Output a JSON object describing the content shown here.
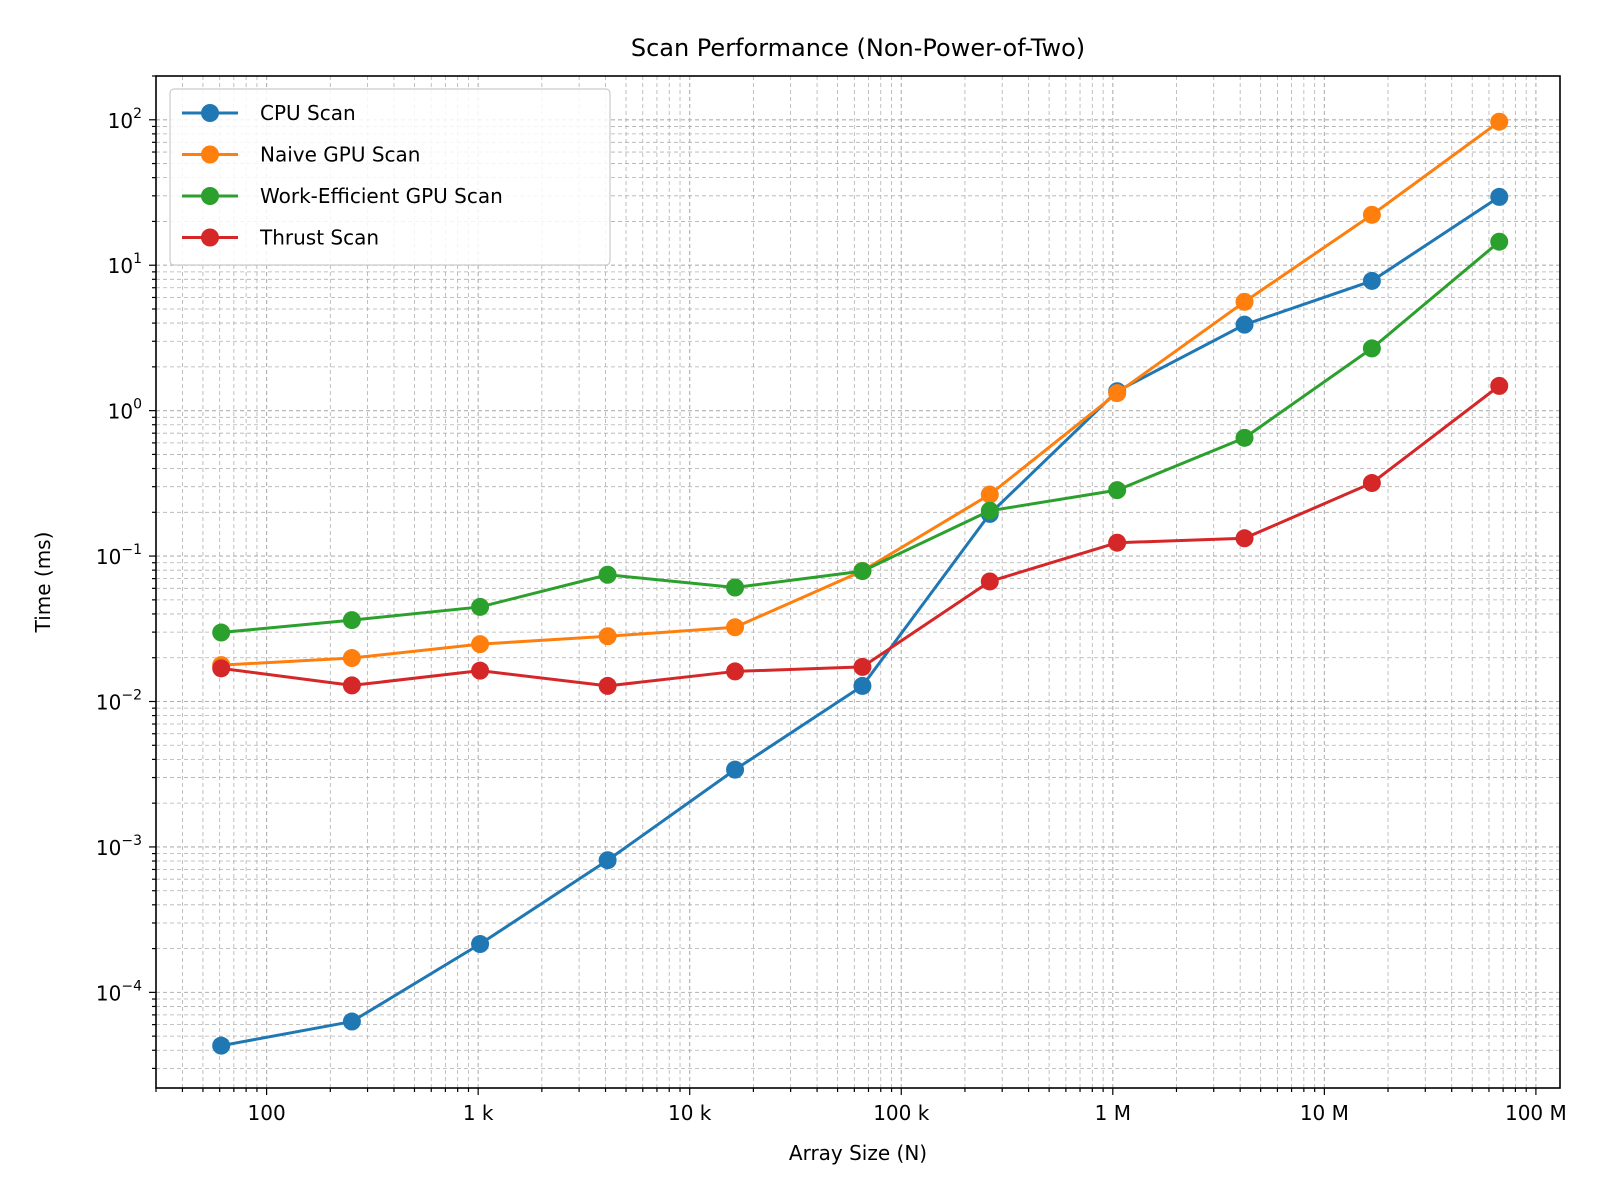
{
  "chart_data": {
    "type": "line",
    "title": "Scan Performance (Non-Power-of-Two)",
    "xlabel": "Array Size (N)",
    "ylabel": "Time (ms)",
    "xscale": "log",
    "yscale": "log",
    "xlim": [
      30,
      130000000
    ],
    "ylim": [
      2.2e-05,
      200
    ],
    "grid": true,
    "legend_position": "upper-left",
    "x": [
      61,
      253,
      1021,
      4093,
      16381,
      65533,
      262141,
      1048573,
      4194301,
      16777213,
      67108861
    ],
    "x_ticks": [
      {
        "value": 100,
        "label": "100"
      },
      {
        "value": 1000,
        "label": "1 k"
      },
      {
        "value": 10000,
        "label": "10 k"
      },
      {
        "value": 100000,
        "label": "100 k"
      },
      {
        "value": 1000000,
        "label": "1 M"
      },
      {
        "value": 10000000,
        "label": "10 M"
      },
      {
        "value": 100000000,
        "label": "100 M"
      }
    ],
    "y_ticks": [
      {
        "value": 0.0001,
        "base": "10",
        "exp": "−4"
      },
      {
        "value": 0.001,
        "base": "10",
        "exp": "−3"
      },
      {
        "value": 0.01,
        "base": "10",
        "exp": "−2"
      },
      {
        "value": 0.1,
        "base": "10",
        "exp": "−1"
      },
      {
        "value": 1,
        "base": "10",
        "exp": "0"
      },
      {
        "value": 10,
        "base": "10",
        "exp": "1"
      },
      {
        "value": 100,
        "base": "10",
        "exp": "2"
      }
    ],
    "series": [
      {
        "name": "CPU Scan",
        "color": "#1f77b4",
        "values": [
          4.3e-05,
          6.3e-05,
          0.000215,
          0.00081,
          0.0034,
          0.0128,
          0.195,
          1.36,
          3.9,
          7.8,
          29.5
        ]
      },
      {
        "name": "Naive GPU Scan",
        "color": "#ff7f0e",
        "values": [
          0.0178,
          0.0199,
          0.0248,
          0.0281,
          0.0324,
          0.079,
          0.265,
          1.32,
          5.6,
          22.2,
          97.0
        ]
      },
      {
        "name": "Work-Efficient GPU Scan",
        "color": "#2ca02c",
        "values": [
          0.0298,
          0.0363,
          0.0447,
          0.0744,
          0.0608,
          0.0788,
          0.205,
          0.284,
          0.65,
          2.68,
          14.5
        ]
      },
      {
        "name": "Thrust Scan",
        "color": "#d62728",
        "values": [
          0.0169,
          0.0129,
          0.0163,
          0.0128,
          0.0161,
          0.0173,
          0.0669,
          0.1235,
          0.1325,
          0.318,
          1.48
        ]
      }
    ]
  }
}
